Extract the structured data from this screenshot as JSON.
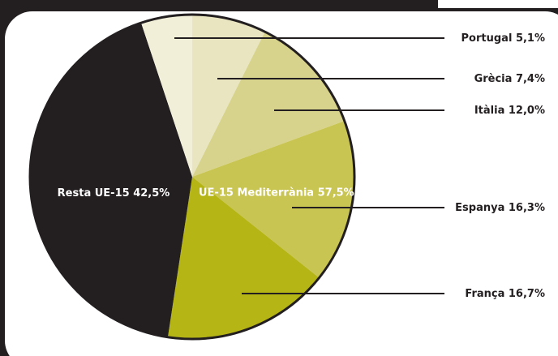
{
  "chart_data": {
    "type": "pie",
    "categories": [
      "Grècia",
      "Itàlia",
      "Espanya",
      "França",
      "Resta UE-15",
      "Portugal"
    ],
    "values": [
      7.4,
      12.0,
      16.3,
      16.7,
      42.5,
      5.1
    ],
    "value_labels": [
      "7,4%",
      "12,0%",
      "16,3%",
      "16,7%",
      "42,5%",
      "5,1%"
    ],
    "colors": [
      "#e9e5c0",
      "#d7d38c",
      "#c9c552",
      "#b5b516",
      "#231f20",
      "#f2efd8"
    ],
    "annotation": "UE-15  Mediterrània 57,5%"
  }
}
